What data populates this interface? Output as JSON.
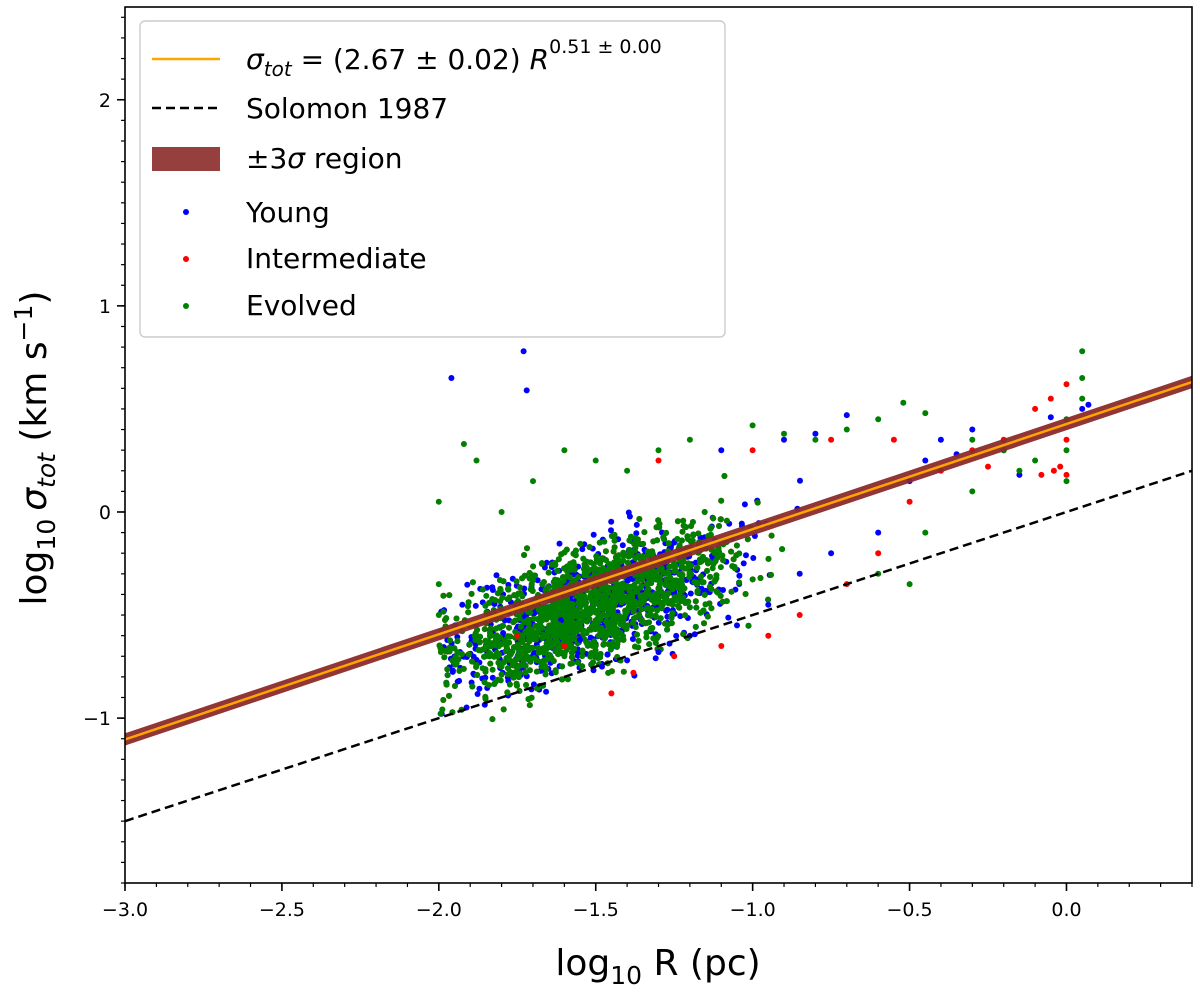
{
  "chart_data": {
    "type": "scatter",
    "xlabel": {
      "base": "log",
      "sub": "10",
      "rest": " R (pc)"
    },
    "ylabel": {
      "base": "log",
      "sub": "10",
      "sigma": "σ",
      "sigma_sub": "tot",
      "rest": " (km s",
      "sup": "−1",
      "close": ")"
    },
    "xlim": [
      -3.0,
      0.4
    ],
    "ylim": [
      -1.8,
      2.45
    ],
    "x_ticks": [
      {
        "value": -3.0,
        "label": "−3.0"
      },
      {
        "value": -2.5,
        "label": "−2.5"
      },
      {
        "value": -2.0,
        "label": "−2.0"
      },
      {
        "value": -1.5,
        "label": "−1.5"
      },
      {
        "value": -1.0,
        "label": "−1.0"
      },
      {
        "value": -0.5,
        "label": "−0.5"
      },
      {
        "value": 0.0,
        "label": "0.0"
      }
    ],
    "y_ticks": [
      {
        "value": -1,
        "label": "−1"
      },
      {
        "value": 0,
        "label": "0"
      },
      {
        "value": 1,
        "label": "1"
      },
      {
        "value": 2,
        "label": "2"
      }
    ],
    "grid": false,
    "legend_position": "top-left",
    "fit_line": {
      "name_parts": {
        "sigma": "σ",
        "sub": "tot",
        "eq": " = (2.67 ± 0.02) ",
        "R": "R",
        "sup": "0.51 ± 0.00"
      },
      "slope": 0.51,
      "intercept": 0.4265,
      "color": "#ffa500"
    },
    "reference_line": {
      "name": "Solomon 1987",
      "slope": 0.5,
      "intercept": 0.0,
      "color": "#000000"
    },
    "band": {
      "name": "±3σ region",
      "half_width": 0.03,
      "color": "#8b2a2a"
    },
    "series": [
      {
        "name": "Young",
        "color": "#0000ff",
        "points": [
          [
            -1.96,
            0.65
          ],
          [
            -1.73,
            0.78
          ],
          [
            -1.72,
            0.59
          ],
          [
            -1.55,
            -0.62
          ],
          [
            -1.48,
            -0.75
          ],
          [
            -1.4,
            -0.72
          ],
          [
            -1.3,
            -0.68
          ],
          [
            -1.2,
            -0.6
          ],
          [
            -1.05,
            -0.55
          ],
          [
            -0.95,
            -0.45
          ],
          [
            -0.85,
            -0.3
          ],
          [
            -0.75,
            -0.2
          ],
          [
            -0.7,
            0.47
          ],
          [
            -0.6,
            -0.1
          ],
          [
            -0.5,
            0.15
          ],
          [
            -0.4,
            0.35
          ],
          [
            -0.3,
            0.4
          ],
          [
            -0.2,
            0.3
          ],
          [
            -0.15,
            0.18
          ],
          [
            -0.05,
            0.46
          ],
          [
            0.05,
            0.5
          ],
          [
            0.07,
            0.52
          ],
          [
            -0.45,
            0.25
          ],
          [
            -0.35,
            0.28
          ],
          [
            -1.1,
            0.3
          ],
          [
            -0.9,
            0.35
          ],
          [
            -0.8,
            0.38
          ]
        ]
      },
      {
        "name": "Intermediate",
        "color": "#ff0000",
        "points": [
          [
            -1.45,
            -0.88
          ],
          [
            -1.38,
            -0.78
          ],
          [
            -1.25,
            -0.7
          ],
          [
            -1.1,
            -0.65
          ],
          [
            -0.95,
            -0.6
          ],
          [
            -0.85,
            -0.5
          ],
          [
            -0.7,
            -0.35
          ],
          [
            -0.6,
            -0.2
          ],
          [
            -0.5,
            0.05
          ],
          [
            -0.4,
            0.2
          ],
          [
            -0.3,
            0.3
          ],
          [
            -0.2,
            0.35
          ],
          [
            -0.1,
            0.5
          ],
          [
            -0.05,
            0.55
          ],
          [
            0.0,
            0.62
          ],
          [
            0.0,
            0.18
          ],
          [
            0.0,
            0.35
          ],
          [
            -0.02,
            0.22
          ],
          [
            -0.04,
            0.2
          ],
          [
            -0.08,
            0.18
          ],
          [
            -1.6,
            -0.65
          ],
          [
            -1.75,
            -0.6
          ],
          [
            -1.3,
            0.25
          ],
          [
            -1.0,
            0.3
          ],
          [
            -0.75,
            0.35
          ],
          [
            -0.55,
            0.35
          ],
          [
            -0.25,
            0.22
          ]
        ]
      },
      {
        "name": "Evolved",
        "color": "#008000",
        "points": [
          [
            -1.92,
            0.33
          ],
          [
            -2.0,
            0.05
          ],
          [
            -2.0,
            -0.35
          ],
          [
            -1.88,
            0.25
          ],
          [
            -1.8,
            0.0
          ],
          [
            -1.7,
            0.15
          ],
          [
            -1.6,
            0.3
          ],
          [
            -1.5,
            0.25
          ],
          [
            -1.4,
            0.2
          ],
          [
            -1.3,
            0.3
          ],
          [
            -1.2,
            0.35
          ],
          [
            -1.0,
            0.42
          ],
          [
            -0.9,
            0.38
          ],
          [
            -0.8,
            0.35
          ],
          [
            -0.7,
            0.4
          ],
          [
            -0.6,
            0.45
          ],
          [
            -0.52,
            0.53
          ],
          [
            -0.45,
            0.48
          ],
          [
            -0.3,
            0.35
          ],
          [
            -0.2,
            0.3
          ],
          [
            -0.1,
            0.25
          ],
          [
            0.0,
            0.15
          ],
          [
            0.0,
            0.3
          ],
          [
            0.0,
            0.45
          ],
          [
            0.05,
            0.55
          ],
          [
            0.05,
            0.65
          ],
          [
            0.05,
            0.78
          ],
          [
            -1.8,
            -0.75
          ],
          [
            -1.6,
            -0.7
          ],
          [
            -0.5,
            -0.35
          ],
          [
            -0.45,
            -0.1
          ],
          [
            -0.6,
            -0.3
          ],
          [
            -0.3,
            0.1
          ],
          [
            -0.15,
            0.2
          ],
          [
            -2.0,
            -0.5
          ],
          [
            -1.9,
            -0.55
          ]
        ]
      }
    ]
  },
  "legend": {
    "fit_label_parts": {
      "sigma": "σ",
      "sub": "tot",
      "eq": " = (2.67 ± 0.02) ",
      "R": "R",
      "sup": "0.51 ± 0.00"
    },
    "ref_label": "Solomon 1987",
    "band_label_parts": {
      "pm": "±3",
      "sigma": "σ",
      "rest": " region"
    }
  }
}
